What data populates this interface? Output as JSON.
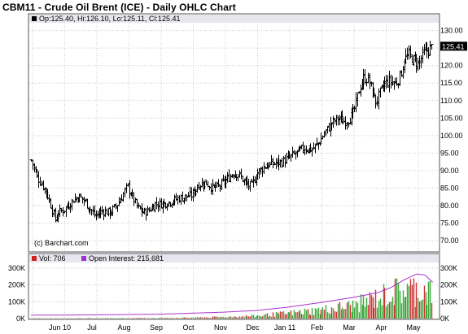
{
  "title": "CBM11 - Crude Oil Brent (ICE) - Daily OHLC Chart",
  "price_legend": "Op:125.40, Hi:126.10, Lo:125.11, Cl:125.41",
  "credit": "(c) Barchart.com",
  "last_price": "125.41",
  "volume_legend": {
    "vol_label": "Vol: 706",
    "oi_label": "Open Interest: 215,681",
    "vol_color": "#cc2222",
    "oi_color": "#9933cc"
  },
  "colors": {
    "bar": "#000000",
    "grid": "#c9c9c9",
    "up_volume": "#3aa83a",
    "down_volume": "#cc3333",
    "open_interest": "#aa33cc",
    "last_box": "#000000"
  },
  "chart_data": [
    {
      "type": "ohlc",
      "title": "CBM11 - Crude Oil Brent (ICE) - Daily OHLC Chart",
      "x_labels": [
        "Jun 10",
        "Jul",
        "Aug",
        "Sep",
        "Oct",
        "Nov",
        "Dec",
        "Jan 11",
        "Feb",
        "Mar",
        "Apr",
        "May"
      ],
      "y_ticks": [
        70,
        75,
        80,
        85,
        90,
        95,
        100,
        105,
        110,
        115,
        120,
        125,
        130
      ],
      "y_tick_labels": [
        "70.00",
        "75.00",
        "80.00",
        "85.00",
        "90.00",
        "95.00",
        "100.00",
        "105.00",
        "110.00",
        "115.00",
        "120.00",
        "125.00",
        "130.00"
      ],
      "ylim": [
        67,
        132
      ],
      "grid": true,
      "close_path": [
        {
          "month": 0.0,
          "close": 93.0
        },
        {
          "month": 0.2,
          "close": 88.0
        },
        {
          "month": 0.45,
          "close": 84.5
        },
        {
          "month": 0.6,
          "close": 80.5
        },
        {
          "month": 0.75,
          "close": 76.0
        },
        {
          "month": 0.85,
          "close": 78.0
        },
        {
          "month": 1.05,
          "close": 79.0
        },
        {
          "month": 1.2,
          "close": 80.5
        },
        {
          "month": 1.35,
          "close": 82.0
        },
        {
          "month": 1.5,
          "close": 82.5
        },
        {
          "month": 1.65,
          "close": 81.5
        },
        {
          "month": 1.8,
          "close": 79.5
        },
        {
          "month": 2.0,
          "close": 77.0
        },
        {
          "month": 2.2,
          "close": 78.5
        },
        {
          "month": 2.45,
          "close": 78.0
        },
        {
          "month": 2.65,
          "close": 80.0
        },
        {
          "month": 2.85,
          "close": 83.0
        },
        {
          "month": 3.0,
          "close": 85.5
        },
        {
          "month": 3.15,
          "close": 82.5
        },
        {
          "month": 3.3,
          "close": 79.5
        },
        {
          "month": 3.5,
          "close": 78.0
        },
        {
          "month": 3.65,
          "close": 78.5
        },
        {
          "month": 3.85,
          "close": 80.5
        },
        {
          "month": 4.05,
          "close": 80.5
        },
        {
          "month": 4.3,
          "close": 81.0
        },
        {
          "month": 4.55,
          "close": 82.0
        },
        {
          "month": 4.8,
          "close": 82.5
        },
        {
          "month": 5.0,
          "close": 83.0
        },
        {
          "month": 5.2,
          "close": 86.0
        },
        {
          "month": 5.45,
          "close": 86.5
        },
        {
          "month": 5.65,
          "close": 85.0
        },
        {
          "month": 5.85,
          "close": 85.5
        },
        {
          "month": 6.05,
          "close": 87.0
        },
        {
          "month": 6.3,
          "close": 89.5
        },
        {
          "month": 6.5,
          "close": 88.5
        },
        {
          "month": 6.7,
          "close": 86.0
        },
        {
          "month": 6.85,
          "close": 85.5
        },
        {
          "month": 7.05,
          "close": 89.5
        },
        {
          "month": 7.3,
          "close": 91.5
        },
        {
          "month": 7.55,
          "close": 92.0
        },
        {
          "month": 7.8,
          "close": 92.5
        },
        {
          "month": 8.0,
          "close": 93.5
        },
        {
          "month": 8.25,
          "close": 95.0
        },
        {
          "month": 8.5,
          "close": 96.5
        },
        {
          "month": 8.75,
          "close": 96.0
        },
        {
          "month": 8.95,
          "close": 98.0
        },
        {
          "month": 9.15,
          "close": 101.0
        },
        {
          "month": 9.35,
          "close": 103.5
        },
        {
          "month": 9.55,
          "close": 105.0
        },
        {
          "month": 9.7,
          "close": 104.0
        },
        {
          "month": 9.85,
          "close": 104.5
        },
        {
          "month": 10.0,
          "close": 106.0
        },
        {
          "month": 10.1,
          "close": 109.0
        },
        {
          "month": 10.2,
          "close": 113.0
        },
        {
          "month": 10.35,
          "close": 116.5
        },
        {
          "month": 10.5,
          "close": 116.0
        },
        {
          "month": 10.6,
          "close": 113.0
        },
        {
          "month": 10.72,
          "close": 109.5
        },
        {
          "month": 10.85,
          "close": 112.0
        },
        {
          "month": 11.0,
          "close": 115.0
        },
        {
          "month": 11.15,
          "close": 115.5
        },
        {
          "month": 11.35,
          "close": 115.0
        },
        {
          "month": 11.5,
          "close": 117.5
        },
        {
          "month": 11.62,
          "close": 122.0
        },
        {
          "month": 11.75,
          "close": 123.0
        },
        {
          "month": 11.9,
          "close": 121.5
        },
        {
          "month": 12.05,
          "close": 120.5
        },
        {
          "month": 12.2,
          "close": 123.5
        },
        {
          "month": 12.35,
          "close": 124.5
        },
        {
          "month": 12.5,
          "close": 125.4
        }
      ]
    },
    {
      "type": "bar+line",
      "series": [
        {
          "name": "Vol",
          "kind": "bar"
        },
        {
          "name": "Open Interest",
          "kind": "line"
        }
      ],
      "y_ticks": [
        0,
        100000,
        200000,
        300000
      ],
      "y_tick_labels": [
        "0K",
        "100K",
        "200K",
        "300K"
      ],
      "ylim": [
        0,
        300000
      ],
      "volume_envelope": [
        {
          "month": 0.0,
          "max": 2000
        },
        {
          "month": 2.0,
          "max": 3000
        },
        {
          "month": 4.0,
          "max": 5000
        },
        {
          "month": 5.0,
          "max": 8000
        },
        {
          "month": 6.0,
          "max": 15000
        },
        {
          "month": 7.0,
          "max": 25000
        },
        {
          "month": 8.0,
          "max": 50000
        },
        {
          "month": 9.0,
          "max": 80000
        },
        {
          "month": 10.0,
          "max": 120000
        },
        {
          "month": 10.5,
          "max": 170000
        },
        {
          "month": 11.0,
          "max": 220000
        },
        {
          "month": 11.5,
          "max": 265000
        },
        {
          "month": 12.0,
          "max": 275000
        },
        {
          "month": 12.5,
          "max": 255000
        }
      ],
      "open_interest": [
        {
          "month": 0.0,
          "value": 20000
        },
        {
          "month": 2.0,
          "value": 22000
        },
        {
          "month": 4.0,
          "value": 26000
        },
        {
          "month": 6.0,
          "value": 38000
        },
        {
          "month": 7.0,
          "value": 48000
        },
        {
          "month": 8.0,
          "value": 68000
        },
        {
          "month": 9.0,
          "value": 95000
        },
        {
          "month": 10.0,
          "value": 125000
        },
        {
          "month": 10.8,
          "value": 155000
        },
        {
          "month": 11.2,
          "value": 185000
        },
        {
          "month": 11.6,
          "value": 230000
        },
        {
          "month": 12.0,
          "value": 265000
        },
        {
          "month": 12.25,
          "value": 260000
        },
        {
          "month": 12.5,
          "value": 215681
        }
      ]
    }
  ]
}
